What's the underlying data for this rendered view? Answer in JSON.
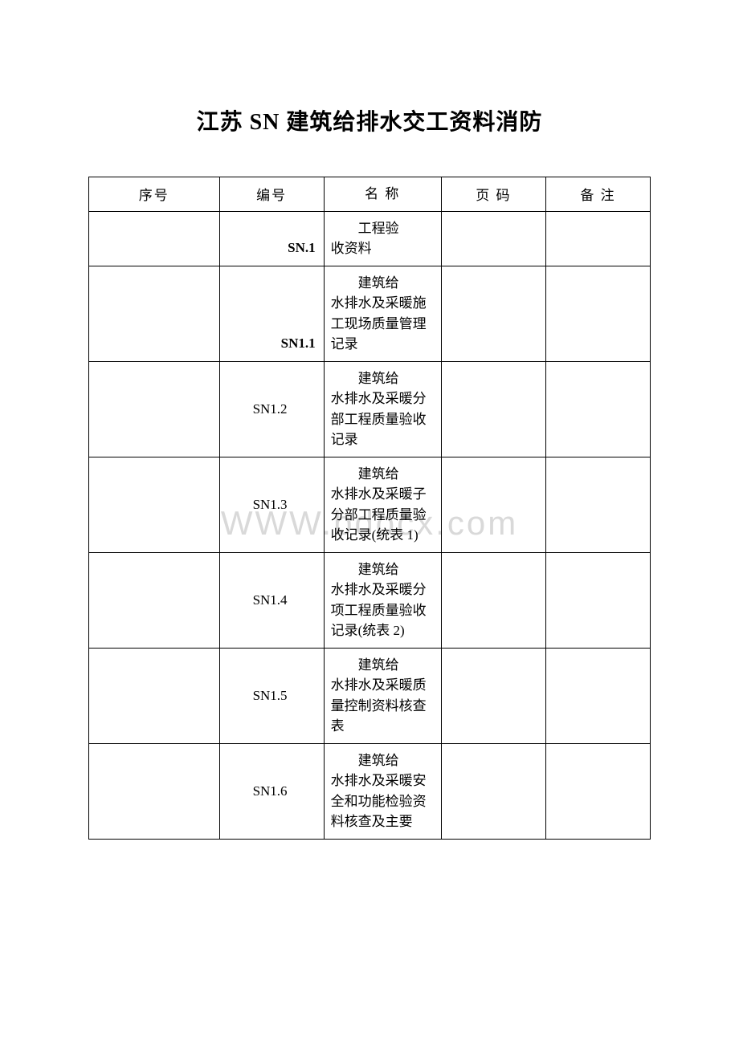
{
  "title_prefix": "江苏 ",
  "title_latin": "SN",
  "title_suffix": " 建筑给排水交工资料消防",
  "watermark": "WWW.bdocx.com",
  "headers": {
    "seq": "序号",
    "code": "编号",
    "name": "名 称",
    "page": "页 码",
    "note": "备 注"
  },
  "rows": [
    {
      "seq": "",
      "code": "SN.1",
      "code_bold": true,
      "code_valign": "bottom",
      "name_first": "工程验",
      "name_rest": "收资料",
      "page": "",
      "note": ""
    },
    {
      "seq": "",
      "code": "SN1.1",
      "code_bold": true,
      "code_valign": "bottom",
      "name_first": "建筑给",
      "name_rest": "水排水及采暖施工现场质量管理记录",
      "page": "",
      "note": ""
    },
    {
      "seq": "",
      "code": "SN1.2",
      "code_bold": false,
      "code_valign": "mid",
      "name_first": "建筑给",
      "name_rest": "水排水及采暖分部工程质量验收记录",
      "page": "",
      "note": ""
    },
    {
      "seq": "",
      "code": "SN1.3",
      "code_bold": false,
      "code_valign": "mid",
      "name_first": "建筑给",
      "name_rest": "水排水及采暖子分部工程质量验收记录(统表 1)",
      "page": "",
      "note": ""
    },
    {
      "seq": "",
      "code": "SN1.4",
      "code_bold": false,
      "code_valign": "mid",
      "name_first": "建筑给",
      "name_rest": "水排水及采暖分项工程质量验收记录(统表 2)",
      "page": "",
      "note": ""
    },
    {
      "seq": "",
      "code": "SN1.5",
      "code_bold": false,
      "code_valign": "mid",
      "name_first": "建筑给",
      "name_rest": "水排水及采暖质量控制资料核查表",
      "page": "",
      "note": ""
    },
    {
      "seq": "",
      "code": "SN1.6",
      "code_bold": false,
      "code_valign": "mid",
      "name_first": "建筑给",
      "name_rest": "水排水及采暖安全和功能检验资料核查及主要",
      "page": "",
      "note": ""
    }
  ],
  "colors": {
    "background": "#ffffff",
    "text": "#000000",
    "border": "#000000",
    "watermark": "#d9d9d9"
  },
  "typography": {
    "title_fontsize": 28,
    "body_fontsize": 17,
    "watermark_fontsize": 42
  }
}
